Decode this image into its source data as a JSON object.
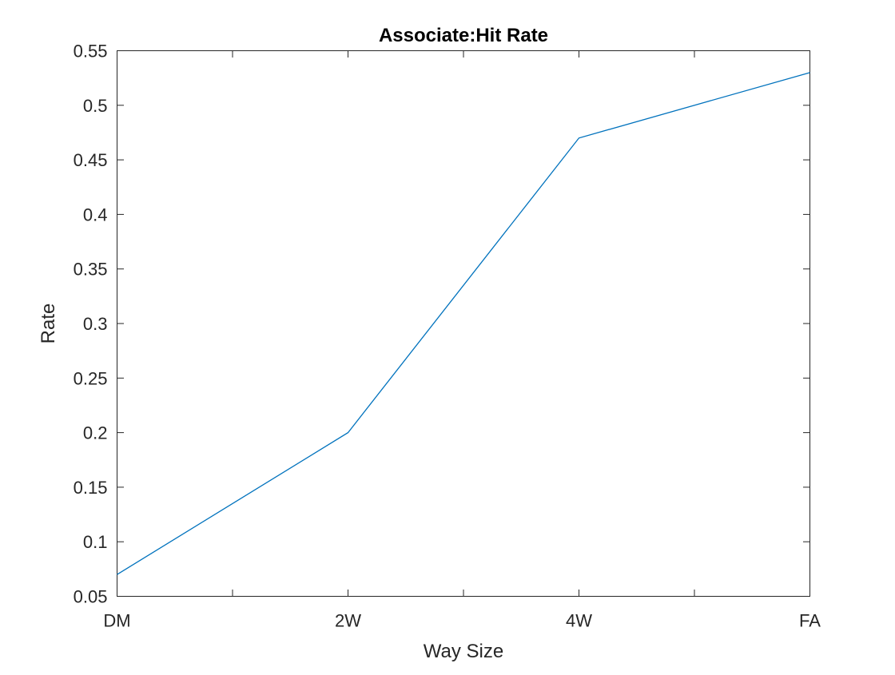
{
  "chart_data": {
    "type": "line",
    "title": "Associate:Hit Rate",
    "xlabel": "Way Size",
    "ylabel": "Rate",
    "categories": [
      "DM",
      "2W",
      "4W",
      "FA"
    ],
    "series": [
      {
        "values": [
          0.07,
          0.2,
          0.47,
          0.53
        ],
        "color": "#0072BD"
      }
    ],
    "ylim": [
      0.05,
      0.55
    ],
    "yticks": [
      0.05,
      0.1,
      0.15,
      0.2,
      0.25,
      0.3,
      0.35,
      0.4,
      0.45,
      0.5,
      0.55
    ],
    "ytick_labels": [
      "0.05",
      "0.1",
      "0.15",
      "0.2",
      "0.25",
      "0.3",
      "0.35",
      "0.4",
      "0.45",
      "0.5",
      "0.55"
    ],
    "x_minor_ticks": true,
    "grid": false,
    "box": true
  }
}
